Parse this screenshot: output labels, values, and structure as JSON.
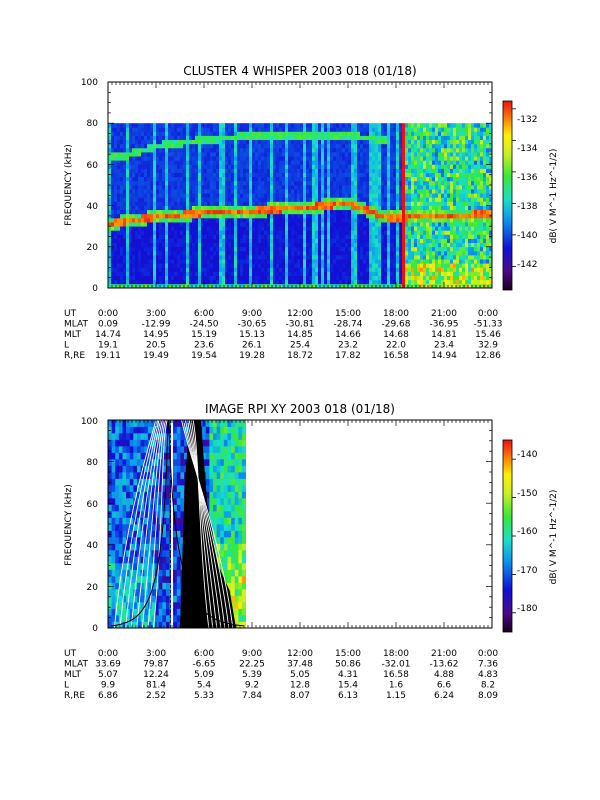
{
  "chart_data": [
    {
      "type": "heatmap",
      "title": "CLUSTER 4 WHISPER 2003 018 (01/18)",
      "ylabel": "FREQUENCY (kHz)",
      "ylim": [
        0,
        100
      ],
      "yticks": [
        "0",
        "20",
        "40",
        "60",
        "80",
        "100"
      ],
      "data_upper_khz": 80,
      "colorbar": {
        "label": "dB( V M^-1 Hz^-1/2)",
        "range": [
          -143.5,
          -131.5
        ],
        "ticks": [
          "-132",
          "-134",
          "-136",
          "-138",
          "-140",
          "-142"
        ],
        "tick_values": [
          -132,
          -134,
          -136,
          -138,
          -140,
          -142
        ]
      },
      "ephemeris": {
        "row_labels": [
          "UT",
          "MLAT",
          "MLT",
          "L",
          "R,RE"
        ],
        "columns": [
          [
            "0:00",
            "0.09",
            "14.74",
            "19.1",
            "19.11"
          ],
          [
            "3:00",
            "-12.99",
            "14.95",
            "20.5",
            "19.49"
          ],
          [
            "6:00",
            "-24.50",
            "15.19",
            "23.6",
            "19.54"
          ],
          [
            "9:00",
            "-30.65",
            "15.13",
            "26.1",
            "19.28"
          ],
          [
            "12:00",
            "-30.81",
            "14.85",
            "25.4",
            "18.72"
          ],
          [
            "15:00",
            "-28.74",
            "14.66",
            "23.2",
            "17.82"
          ],
          [
            "18:00",
            "-29.68",
            "14.68",
            "22.0",
            "16.58"
          ],
          [
            "21:00",
            "-36.95",
            "14.81",
            "23.4",
            "14.94"
          ],
          [
            "0:00",
            "-51.33",
            "15.46",
            "32.9",
            "12.86"
          ]
        ]
      },
      "features": {
        "plasma_line_khz": [
          [
            0,
            31
          ],
          [
            1.5,
            33
          ],
          [
            3,
            34.5
          ],
          [
            6,
            36.5
          ],
          [
            9,
            37.5
          ],
          [
            12,
            39
          ],
          [
            15,
            41
          ],
          [
            16.5,
            37
          ],
          [
            17.5,
            34
          ],
          [
            24,
            36
          ]
        ],
        "upper_band_khz": [
          [
            1,
            64
          ],
          [
            3,
            69
          ],
          [
            6,
            72
          ],
          [
            9,
            74
          ],
          [
            12,
            74
          ],
          [
            15,
            74
          ],
          [
            17.5,
            72
          ]
        ]
      }
    },
    {
      "type": "heatmap",
      "title": "IMAGE RPI XY 2003 018 (01/18)",
      "ylabel": "FREQUENCY (kHz)",
      "ylim": [
        0,
        100
      ],
      "yticks": [
        "0",
        "20",
        "40",
        "60",
        "80",
        "100"
      ],
      "data_hours": [
        0,
        8.6
      ],
      "colorbar": {
        "label": "dB( V M^-1 Hz^-1/2)",
        "range": [
          -185,
          -135
        ],
        "ticks": [
          "-140",
          "-150",
          "-160",
          "-170",
          "-180"
        ],
        "tick_values": [
          -140,
          -150,
          -160,
          -170,
          -180
        ]
      },
      "ephemeris": {
        "row_labels": [
          "UT",
          "MLAT",
          "MLT",
          "L",
          "R,RE"
        ],
        "columns": [
          [
            "0:00",
            "33.69",
            "5.07",
            "9.9",
            "6.86"
          ],
          [
            "3:00",
            "79.87",
            "12.24",
            "81.4",
            "2.52"
          ],
          [
            "6:00",
            "-6.65",
            "5.09",
            "5.4",
            "5.33"
          ],
          [
            "9:00",
            "22.25",
            "5.39",
            "9.2",
            "7.84"
          ],
          [
            "12:00",
            "37.48",
            "5.05",
            "12.8",
            "8.07"
          ],
          [
            "15:00",
            "50.86",
            "4.31",
            "15.4",
            "6.13"
          ],
          [
            "18:00",
            "-32.01",
            "16.58",
            "1.6",
            "1.15"
          ],
          [
            "21:00",
            "-13.62",
            "4.88",
            "6.6",
            "6.24"
          ],
          [
            "0:00",
            "7.36",
            "4.83",
            "8.2",
            "8.09"
          ]
        ]
      }
    }
  ]
}
